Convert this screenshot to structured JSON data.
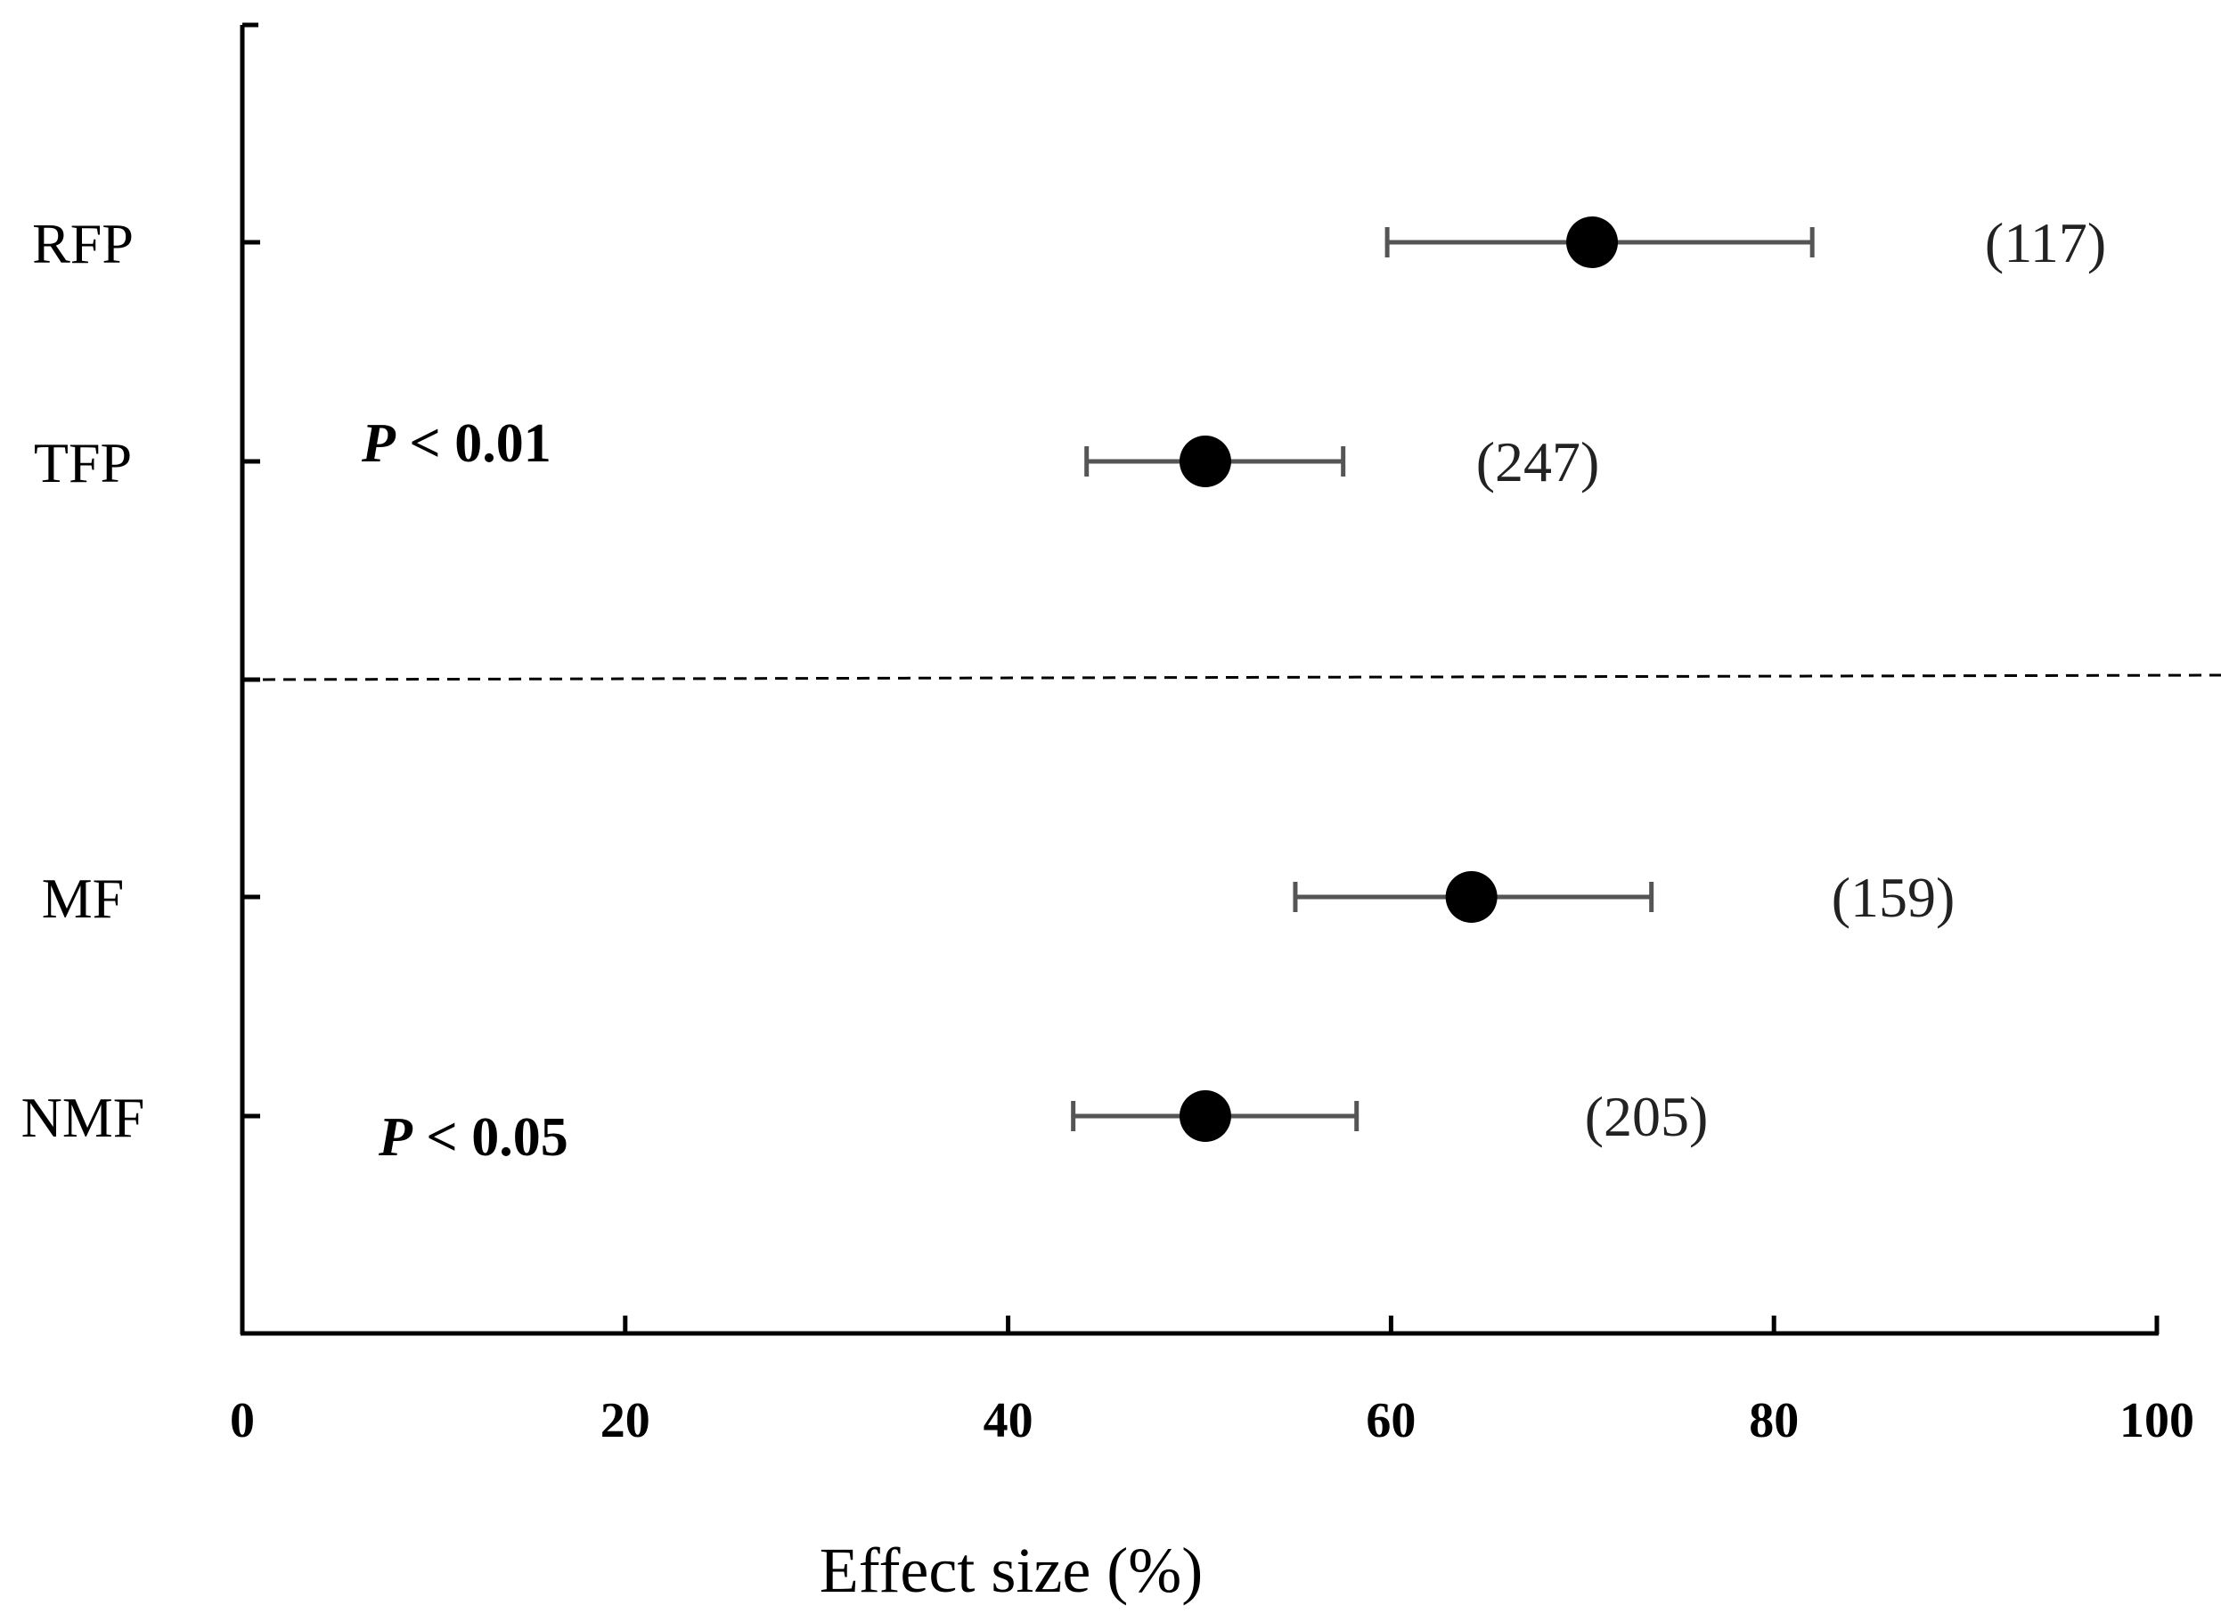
{
  "chart_data": {
    "type": "scatter",
    "subtype": "forest-plot",
    "title": "",
    "xlabel": "Effect size (%)",
    "ylabel": "",
    "xlim": [
      0,
      100
    ],
    "x_ticks": [
      "0",
      "20",
      "40",
      "60",
      "80",
      "100"
    ],
    "grid": false,
    "categories": [
      "RFP",
      "TFP",
      "MF",
      "NMF"
    ],
    "points": [
      {
        "category": "RFP",
        "estimate": 70.5,
        "ci_low": 59.8,
        "ci_high": 82.0,
        "n_label": "(117)"
      },
      {
        "category": "TFP",
        "estimate": 50.3,
        "ci_low": 44.1,
        "ci_high": 57.5,
        "n_label": "(247)"
      },
      {
        "category": "MF",
        "estimate": 64.2,
        "ci_low": 55.0,
        "ci_high": 73.6,
        "n_label": "(159)"
      },
      {
        "category": "NMF",
        "estimate": 50.3,
        "ci_low": 43.4,
        "ci_high": 58.2,
        "n_label": "(205)"
      }
    ],
    "annotations": [
      {
        "group": "top",
        "letter": "P",
        "text": "< 0.01"
      },
      {
        "group": "bottom",
        "letter": "P",
        "text": "< 0.05"
      }
    ],
    "colors": {
      "point": "#000000",
      "error_bar": "#555555",
      "axis": "#000000",
      "divider": "#000000"
    }
  }
}
